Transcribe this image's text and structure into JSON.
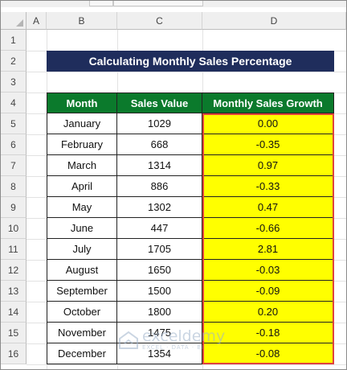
{
  "columns": [
    "A",
    "B",
    "C",
    "D"
  ],
  "rows": [
    "1",
    "2",
    "3",
    "4",
    "5",
    "6",
    "7",
    "8",
    "9",
    "10",
    "11",
    "12",
    "13",
    "14",
    "15",
    "16"
  ],
  "title": "Calculating Monthly Sales Percentage",
  "table": {
    "headers": [
      "Month",
      "Sales Value",
      "Monthly Sales Growth"
    ],
    "rows": [
      {
        "month": "January",
        "sales": "1029",
        "growth": "0.00"
      },
      {
        "month": "February",
        "sales": "668",
        "growth": "-0.35"
      },
      {
        "month": "March",
        "sales": "1314",
        "growth": "0.97"
      },
      {
        "month": "April",
        "sales": "886",
        "growth": "-0.33"
      },
      {
        "month": "May",
        "sales": "1302",
        "growth": "0.47"
      },
      {
        "month": "June",
        "sales": "447",
        "growth": "-0.66"
      },
      {
        "month": "July",
        "sales": "1705",
        "growth": "2.81"
      },
      {
        "month": "August",
        "sales": "1650",
        "growth": "-0.03"
      },
      {
        "month": "September",
        "sales": "1500",
        "growth": "-0.09"
      },
      {
        "month": "October",
        "sales": "1800",
        "growth": "0.20"
      },
      {
        "month": "November",
        "sales": "1475",
        "growth": "-0.18"
      },
      {
        "month": "December",
        "sales": "1354",
        "growth": "-0.08"
      }
    ]
  },
  "watermark": {
    "name": "exceldemy",
    "tagline": "EXCEL · DATA · BI"
  },
  "colors": {
    "title_bg": "#1f2d5c",
    "header_bg": "#0b7a2c",
    "highlight": "#ffff00",
    "selection_border": "#e0433b"
  }
}
